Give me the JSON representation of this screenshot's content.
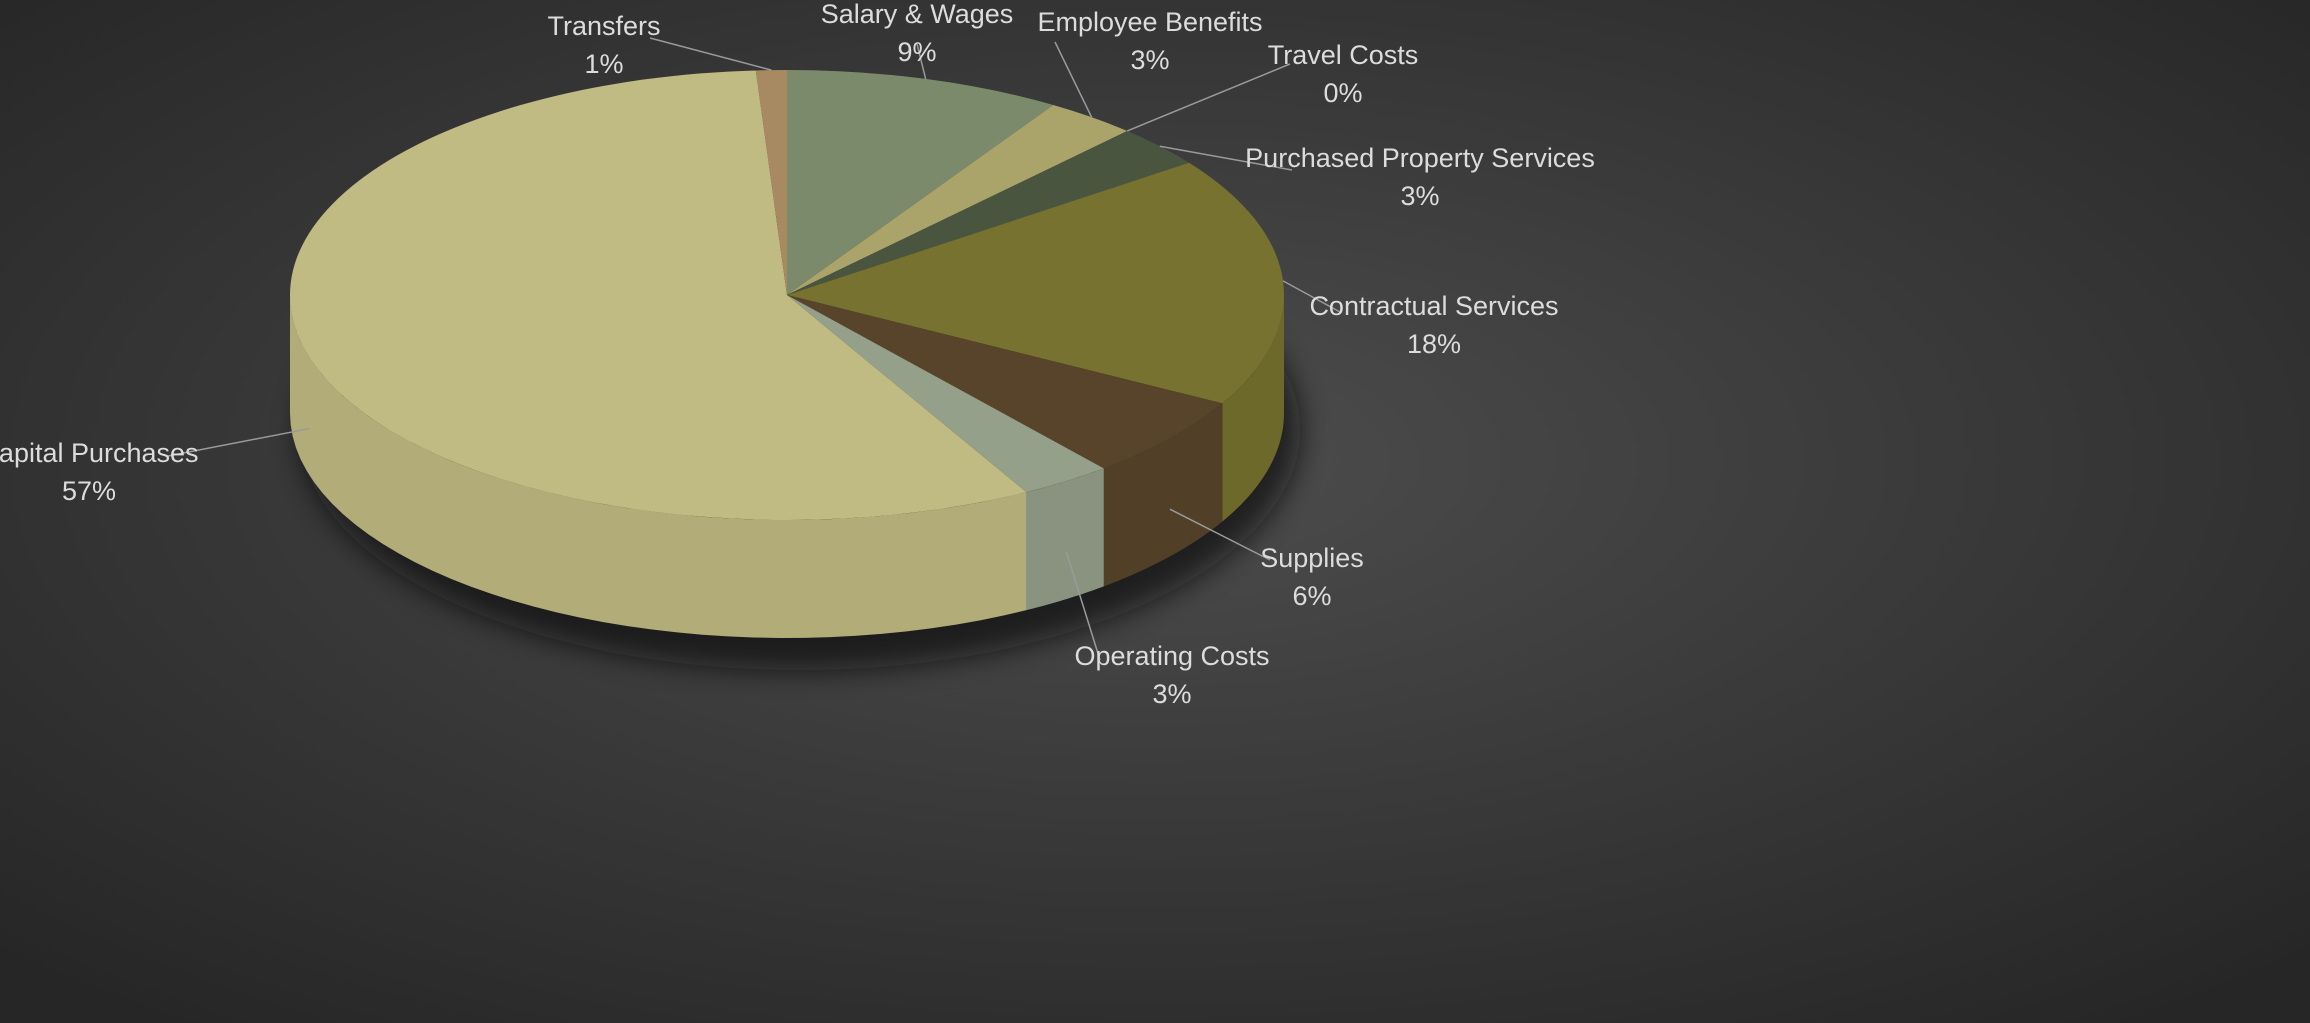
{
  "chart_data": {
    "type": "pie",
    "categories": [
      "Salary & Wages",
      "Employee Benefits",
      "Travel Costs",
      "Purchased Property Services",
      "Contractual Services",
      "Supplies",
      "Operating Costs",
      "Capital Purchases",
      "Transfers"
    ],
    "values": [
      9,
      3,
      0,
      3,
      18,
      6,
      3,
      57,
      1
    ],
    "value_labels": [
      "9%",
      "3%",
      "0%",
      "3%",
      "18%",
      "6%",
      "3%",
      "57%",
      "1%"
    ],
    "colors": [
      "#7c8a6c",
      "#aaa46a",
      "#6b6b3a",
      "#4a5540",
      "#77722f",
      "#58442a",
      "#95a08a",
      "#c0bb82",
      "#a88a62"
    ]
  }
}
